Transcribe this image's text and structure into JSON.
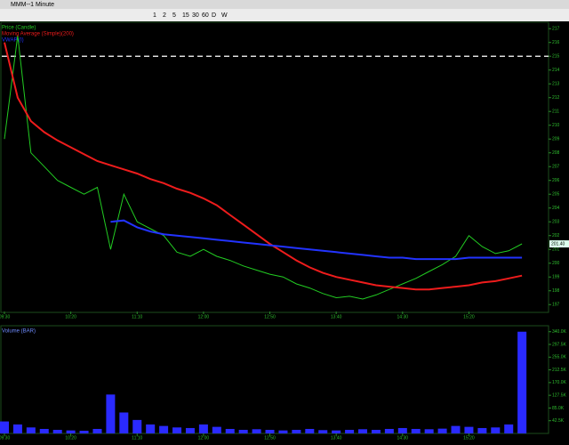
{
  "window": {
    "title": "MMM--1 Minute"
  },
  "toolbar": {
    "intervals": [
      "1",
      "2",
      "5",
      "15",
      "30",
      "60",
      "D",
      "W"
    ]
  },
  "chart_data": [
    {
      "type": "line",
      "x": [
        0,
        1,
        2,
        3,
        4,
        5,
        6,
        7,
        8,
        9,
        10,
        11,
        12,
        13,
        14,
        15,
        16,
        17,
        18,
        19,
        20,
        21,
        22,
        23,
        24,
        25,
        26,
        27,
        28,
        29,
        30,
        31,
        32,
        33,
        34,
        35,
        36,
        37,
        38,
        39
      ],
      "xlim": [
        -0.2,
        41
      ],
      "xticks": [
        {
          "value": 0,
          "label": "09:30"
        },
        {
          "value": 5,
          "label": "10:20"
        },
        {
          "value": 10,
          "label": "11:10"
        },
        {
          "value": 15,
          "label": "12:00"
        },
        {
          "value": 20,
          "label": "12:50"
        },
        {
          "value": 25,
          "label": "13:40"
        },
        {
          "value": 30,
          "label": "14:30"
        },
        {
          "value": 35,
          "label": "15:20"
        }
      ],
      "ylim": [
        196.5,
        217.4
      ],
      "yticks": [
        197,
        198,
        199,
        200,
        201,
        202,
        203,
        204,
        205,
        206,
        207,
        208,
        209,
        210,
        211,
        212,
        213,
        214,
        215,
        216,
        217
      ],
      "reference_line": 215,
      "last_label": "201.40",
      "series": [
        {
          "name": "Price (Candle)",
          "color": "#22cc22",
          "values": [
            209,
            216.5,
            208,
            207,
            206,
            205.5,
            205,
            205.5,
            201,
            205,
            203,
            202.5,
            202,
            200.8,
            200.5,
            201,
            200.5,
            200.2,
            199.8,
            199.5,
            199.2,
            199,
            198.5,
            198.2,
            197.8,
            197.5,
            197.6,
            197.4,
            197.7,
            198.1,
            198.5,
            198.9,
            199.4,
            199.9,
            200.5,
            202,
            201.2,
            200.7,
            200.9,
            201.4
          ]
        },
        {
          "name": "Moving Average (Simple)(200)",
          "color": "#ee1c1c",
          "values": [
            216,
            212,
            210.3,
            209.5,
            208.9,
            208.4,
            207.9,
            207.4,
            207.1,
            206.8,
            206.5,
            206.1,
            205.8,
            205.4,
            205.1,
            204.7,
            204.2,
            203.5,
            202.8,
            202.1,
            201.4,
            200.8,
            200.2,
            199.7,
            199.3,
            199,
            198.8,
            198.6,
            198.4,
            198.3,
            198.2,
            198.1,
            198.1,
            198.2,
            198.3,
            198.4,
            198.6,
            198.7,
            198.9,
            199.1
          ]
        },
        {
          "name": "VWAP (I)",
          "color": "#2233ff",
          "values": [
            null,
            null,
            null,
            null,
            null,
            null,
            null,
            null,
            203,
            203.1,
            202.6,
            202.3,
            202.1,
            202,
            201.9,
            201.8,
            201.7,
            201.6,
            201.5,
            201.4,
            201.3,
            201.2,
            201.1,
            201,
            200.9,
            200.8,
            200.7,
            200.6,
            200.5,
            200.4,
            200.4,
            200.3,
            200.3,
            200.3,
            200.3,
            200.4,
            200.4,
            200.4,
            200.4,
            200.4
          ]
        }
      ]
    },
    {
      "type": "bar",
      "title": "Volume (BAR)",
      "color": "#2a2aff",
      "x": [
        0,
        1,
        2,
        3,
        4,
        5,
        6,
        7,
        8,
        9,
        10,
        11,
        12,
        13,
        14,
        15,
        16,
        17,
        18,
        19,
        20,
        21,
        22,
        23,
        24,
        25,
        26,
        27,
        28,
        29,
        30,
        31,
        32,
        33,
        34,
        35,
        36,
        37,
        38,
        39
      ],
      "xlim": [
        -0.2,
        41
      ],
      "values": [
        40000,
        30000,
        20000,
        15000,
        12000,
        10000,
        9000,
        15000,
        130000,
        70000,
        45000,
        30000,
        25000,
        20000,
        18000,
        30000,
        22000,
        15000,
        12000,
        14000,
        12000,
        10000,
        12000,
        15000,
        11000,
        10000,
        12000,
        14000,
        12000,
        15000,
        18000,
        15000,
        14000,
        16000,
        25000,
        22000,
        18000,
        20000,
        30000,
        340000
      ],
      "ylim": [
        0,
        360000
      ],
      "yticks": [
        {
          "value": 42500,
          "label": "42.5K"
        },
        {
          "value": 85000,
          "label": "85.0K"
        },
        {
          "value": 127500,
          "label": "127.5K"
        },
        {
          "value": 170000,
          "label": "170.0K"
        },
        {
          "value": 212500,
          "label": "212.5K"
        },
        {
          "value": 255000,
          "label": "255.0K"
        },
        {
          "value": 297500,
          "label": "297.5K"
        },
        {
          "value": 340000,
          "label": "340.0K"
        }
      ]
    }
  ]
}
